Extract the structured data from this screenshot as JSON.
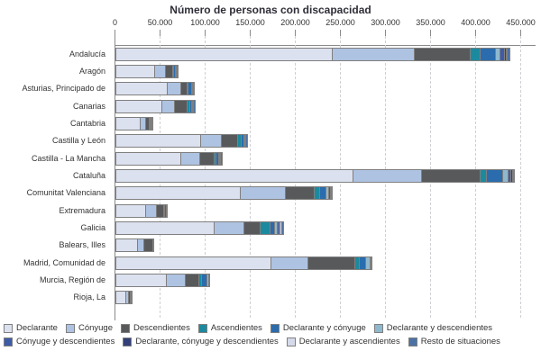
{
  "title": "Número de personas con discapacidad",
  "x_axis": {
    "tick_labels": [
      "0",
      "50.000",
      "100.000",
      "150.000",
      "200.000",
      "250.000",
      "300.000",
      "350.000",
      "400.000",
      "450.000"
    ],
    "tick_values": [
      0,
      50000,
      100000,
      150000,
      200000,
      250000,
      300000,
      350000,
      400000,
      450000
    ]
  },
  "chart_data": {
    "type": "bar",
    "orientation": "horizontal",
    "stacked": true,
    "title": "Número de personas con discapacidad",
    "xlabel": "",
    "ylabel": "",
    "xlim": [
      0,
      450000
    ],
    "grid": "vertical-dashed",
    "legend_position": "bottom",
    "legend_rows": [
      6,
      4
    ],
    "categories": [
      "Andalucía",
      "Aragón",
      "Asturias, Principado de",
      "Canarias",
      "Cantabria",
      "Castilla y León",
      "Castilla - La Mancha",
      "Cataluña",
      "Comunitat Valenciana",
      "Extremadura",
      "Galicia",
      "Balears, Illes",
      "Madrid, Comunidad de",
      "Murcia, Región de",
      "Rioja, La"
    ],
    "series": [
      {
        "name": "Declarante",
        "color": "#dce1f0",
        "values": [
          240000,
          43000,
          57000,
          51000,
          27000,
          94000,
          72000,
          263000,
          138000,
          33000,
          109000,
          24000,
          172000,
          56000,
          11000
        ]
      },
      {
        "name": "Cónyuge",
        "color": "#aec3e2",
        "values": [
          91000,
          12000,
          15000,
          14000,
          6000,
          23000,
          21000,
          76000,
          50000,
          12000,
          33000,
          7000,
          41000,
          21000,
          3000
        ]
      },
      {
        "name": "Descendientes",
        "color": "#58595b",
        "values": [
          62000,
          8000,
          7000,
          14000,
          4000,
          18000,
          16000,
          65000,
          32000,
          8000,
          18000,
          10000,
          52000,
          15000,
          2000
        ]
      },
      {
        "name": "Ascendientes",
        "color": "#1b8a9f",
        "values": [
          11000,
          1000,
          1000,
          3000,
          1000,
          4000,
          2000,
          7000,
          6000,
          1000,
          11000,
          0,
          5000,
          3000,
          0
        ]
      },
      {
        "name": "Declarante y cónyuge",
        "color": "#2a6cad",
        "values": [
          17000,
          2000,
          4000,
          2000,
          1000,
          3000,
          3000,
          18000,
          7000,
          2000,
          5000,
          1000,
          7000,
          6000,
          1000
        ]
      },
      {
        "name": "Declarante y descendientes",
        "color": "#90b8cc",
        "values": [
          5000,
          1000,
          1000,
          1000,
          0,
          1000,
          1000,
          6000,
          3000,
          0,
          3000,
          0,
          5000,
          2000,
          0
        ]
      },
      {
        "name": "Cónyuge y descendientes",
        "color": "#3d5ba8",
        "values": [
          5000,
          1000,
          1000,
          1000,
          1000,
          1000,
          1000,
          3000,
          2000,
          1000,
          2000,
          0,
          1000,
          0,
          0
        ]
      },
      {
        "name": "Declarante, cónyuge y descendientes",
        "color": "#333f78",
        "values": [
          2000,
          0,
          0,
          0,
          0,
          0,
          0,
          2000,
          1000,
          0,
          1000,
          0,
          0,
          0,
          0
        ]
      },
      {
        "name": "Declarante y ascendientes",
        "color": "#d5daea",
        "values": [
          1000,
          0,
          0,
          0,
          0,
          0,
          0,
          1000,
          0,
          0,
          2000,
          0,
          0,
          0,
          0
        ]
      },
      {
        "name": "Resto de situaciones",
        "color": "#4c72a5",
        "values": [
          3000,
          1000,
          1000,
          2000,
          1000,
          2000,
          2000,
          1000,
          1000,
          0,
          2000,
          0,
          1000,
          1000,
          1000
        ]
      }
    ]
  }
}
